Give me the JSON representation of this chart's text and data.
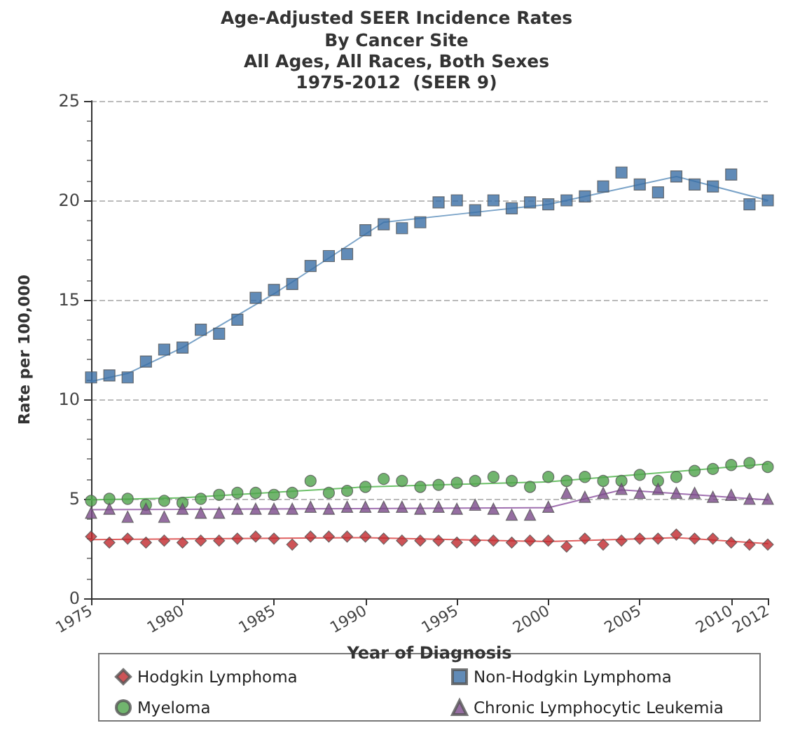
{
  "chart_data": {
    "type": "scatter",
    "title": "Age-Adjusted SEER Incidence Rates",
    "subtitle": "By Cancer Site\nAll Ages, All Races, Both Sexes\n1975-2012  (SEER 9)",
    "xlabel": "Year of Diagnosis",
    "ylabel": "Rate per 100,000",
    "x": [
      1975,
      1976,
      1977,
      1978,
      1979,
      1980,
      1981,
      1982,
      1983,
      1984,
      1985,
      1986,
      1987,
      1988,
      1989,
      1990,
      1991,
      1992,
      1993,
      1994,
      1995,
      1996,
      1997,
      1998,
      1999,
      2000,
      2001,
      2002,
      2003,
      2004,
      2005,
      2006,
      2007,
      2008,
      2009,
      2010,
      2011,
      2012
    ],
    "series": [
      {
        "name": "Hodgkin Lymphoma",
        "color": "#c0282d",
        "marker": "diamond",
        "values": [
          3.1,
          2.8,
          3.0,
          2.8,
          2.9,
          2.8,
          2.9,
          2.9,
          3.0,
          3.1,
          3.0,
          2.7,
          3.1,
          3.1,
          3.1,
          3.1,
          3.0,
          2.9,
          2.9,
          2.9,
          2.8,
          2.9,
          2.9,
          2.8,
          2.9,
          2.9,
          2.6,
          3.0,
          2.7,
          2.9,
          3.0,
          3.0,
          3.2,
          3.0,
          3.0,
          2.8,
          2.7,
          2.7
        ]
      },
      {
        "name": "Non-Hodgkin Lymphoma",
        "color": "#3a6ea5",
        "marker": "square",
        "values": [
          11.1,
          11.2,
          11.1,
          11.9,
          12.5,
          12.6,
          13.5,
          13.3,
          14.0,
          15.1,
          15.5,
          15.8,
          16.7,
          17.2,
          17.3,
          18.5,
          18.8,
          18.6,
          18.9,
          19.9,
          20.0,
          19.5,
          20.0,
          19.6,
          19.9,
          19.8,
          20.0,
          20.2,
          20.7,
          21.4,
          20.8,
          20.4,
          21.2,
          20.8,
          20.7,
          21.3,
          19.8,
          20.0
        ]
      },
      {
        "name": "Myeloma",
        "color": "#4ea24a",
        "marker": "circle",
        "values": [
          4.9,
          5.0,
          5.0,
          4.7,
          4.9,
          4.8,
          5.0,
          5.2,
          5.3,
          5.3,
          5.2,
          5.3,
          5.9,
          5.3,
          5.4,
          5.6,
          6.0,
          5.9,
          5.6,
          5.7,
          5.8,
          5.9,
          6.1,
          5.9,
          5.6,
          6.1,
          5.9,
          6.1,
          5.9,
          5.9,
          6.2,
          5.9,
          6.1,
          6.4,
          6.5,
          6.7,
          6.8,
          6.6
        ]
      },
      {
        "name": "Chronic Lymphocytic Leukemia",
        "color": "#7a4a8a",
        "marker": "triangle",
        "values": [
          4.3,
          4.5,
          4.1,
          4.5,
          4.1,
          4.5,
          4.3,
          4.3,
          4.5,
          4.5,
          4.5,
          4.5,
          4.6,
          4.5,
          4.6,
          4.6,
          4.6,
          4.6,
          4.5,
          4.6,
          4.5,
          4.7,
          4.5,
          4.2,
          4.2,
          4.6,
          5.3,
          5.1,
          5.3,
          5.5,
          5.3,
          5.5,
          5.3,
          5.3,
          5.1,
          5.2,
          5.0,
          5.0
        ]
      },
      {
        "type": "line",
        "color": "#e06060",
        "marker": "none",
        "x": [
          1975,
          1990,
          2000,
          2007,
          2012
        ],
        "values": [
          2.95,
          3.05,
          2.85,
          3.05,
          2.75
        ]
      },
      {
        "type": "line",
        "color": "#7aa3c8",
        "marker": "none",
        "x": [
          1975,
          1977,
          1980,
          1985,
          1990,
          1991,
          1995,
          2000,
          2007,
          2012
        ],
        "values": [
          10.9,
          11.3,
          12.6,
          15.3,
          18.3,
          18.9,
          19.3,
          19.8,
          21.2,
          20.0
        ]
      },
      {
        "type": "line",
        "color": "#6cc068",
        "marker": "none",
        "x": [
          1975,
          1980,
          1990,
          2000,
          2012
        ],
        "values": [
          4.95,
          5.05,
          5.6,
          5.85,
          6.75
        ]
      },
      {
        "type": "line",
        "color": "#a070b0",
        "marker": "none",
        "x": [
          1975,
          2000,
          2004,
          2012
        ],
        "values": [
          4.45,
          4.55,
          5.45,
          4.95
        ]
      }
    ],
    "xlim": [
      1975,
      2012
    ],
    "xticks": [
      1975,
      1980,
      1985,
      1990,
      1995,
      2000,
      2005,
      2010,
      2012
    ],
    "ylim": [
      0,
      25
    ],
    "yticks": [
      0,
      5,
      10,
      15,
      20,
      25
    ],
    "grid": "y",
    "legend": "bottom"
  }
}
